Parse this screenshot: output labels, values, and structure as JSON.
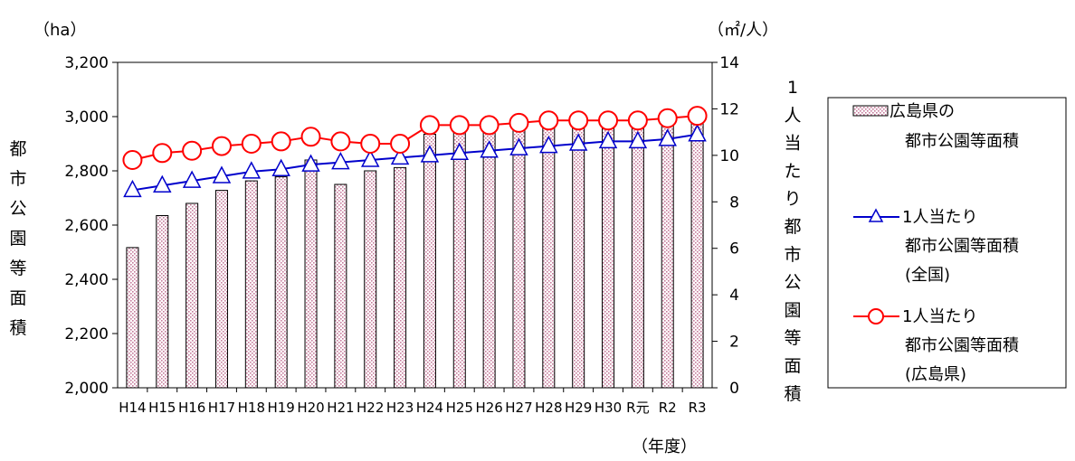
{
  "chart_data": {
    "type": "bar",
    "categories": [
      "H14",
      "H15",
      "H16",
      "H17",
      "H18",
      "H19",
      "H20",
      "H21",
      "H22",
      "H23",
      "H24",
      "H25",
      "H26",
      "H27",
      "H28",
      "H29",
      "H30",
      "R元",
      "R2",
      "R3"
    ],
    "bar_series": {
      "name": "広島県の都市公園等面積",
      "name_lines": [
        "広島県の",
        "都市公園等面積"
      ],
      "values": [
        2517,
        2635,
        2680,
        2728,
        2763,
        2778,
        2840,
        2750,
        2800,
        2812,
        2935,
        2945,
        2955,
        2980,
        2990,
        2995,
        2997,
        3000,
        3003,
        3005
      ],
      "color": "#c47a9a"
    },
    "line_series": [
      {
        "name": "1人当たり都市公園等面積（全国）",
        "name_lines": [
          "1人当たり",
          "都市公園等面積",
          "(全国)"
        ],
        "values": [
          8.5,
          8.7,
          8.9,
          9.1,
          9.3,
          9.4,
          9.6,
          9.7,
          9.8,
          9.9,
          10.0,
          10.1,
          10.2,
          10.3,
          10.4,
          10.5,
          10.6,
          10.6,
          10.7,
          10.9
        ],
        "color": "#0000cc",
        "marker": "triangle"
      },
      {
        "name": "1人当たり都市公園等面積（広島県）",
        "name_lines": [
          "1人当たり",
          "都市公園等面積",
          "(広島県)"
        ],
        "values": [
          9.8,
          10.1,
          10.2,
          10.4,
          10.5,
          10.6,
          10.8,
          10.6,
          10.5,
          10.5,
          11.3,
          11.3,
          11.3,
          11.4,
          11.5,
          11.5,
          11.5,
          11.5,
          11.6,
          11.7
        ],
        "color": "#ff0000",
        "marker": "circle"
      }
    ],
    "y_left": {
      "unit": "（ha）",
      "label": "都市公園等面積",
      "ylim": [
        2000,
        3200
      ],
      "ticks": [
        "2,000",
        "2,200",
        "2,400",
        "2,600",
        "2,800",
        "3,000",
        "3,200"
      ]
    },
    "y_right": {
      "unit": "（㎡/人）",
      "label": "1人当たり都市公園等面積",
      "ylim": [
        0,
        14
      ],
      "ticks": [
        "0",
        "2",
        "4",
        "6",
        "8",
        "10",
        "12",
        "14"
      ]
    },
    "x_unit": "（年度）",
    "grid": false,
    "legend_position": "right"
  }
}
